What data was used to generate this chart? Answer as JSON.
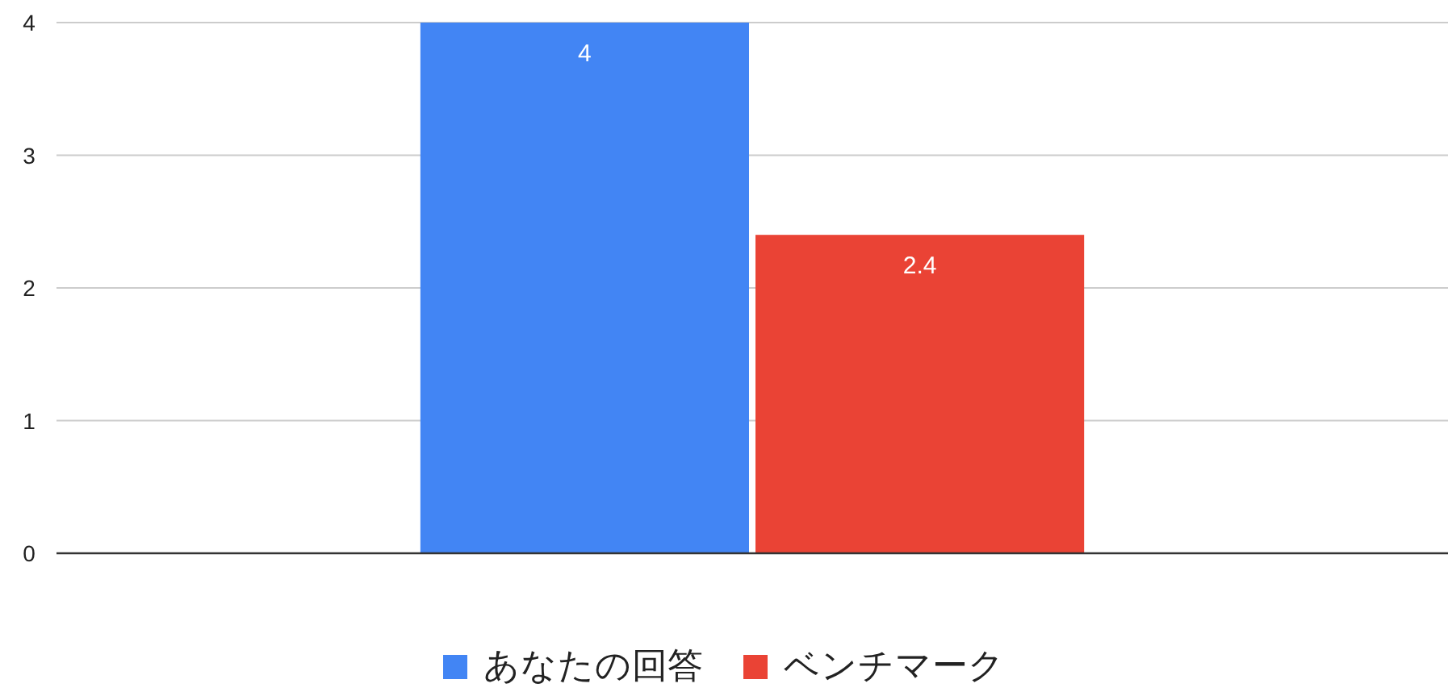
{
  "chart_data": {
    "type": "bar",
    "categories": [
      null
    ],
    "series": [
      {
        "name": "あなたの回答",
        "color": "#4285f4",
        "values": [
          4
        ]
      },
      {
        "name": "ベンチマーク",
        "color": "#ea4335",
        "values": [
          2.4
        ]
      }
    ],
    "ylim": [
      0,
      4
    ],
    "yticks": [
      0,
      1,
      2,
      3,
      4
    ],
    "grid": "y",
    "legend": "bottom",
    "data_labels": true
  }
}
